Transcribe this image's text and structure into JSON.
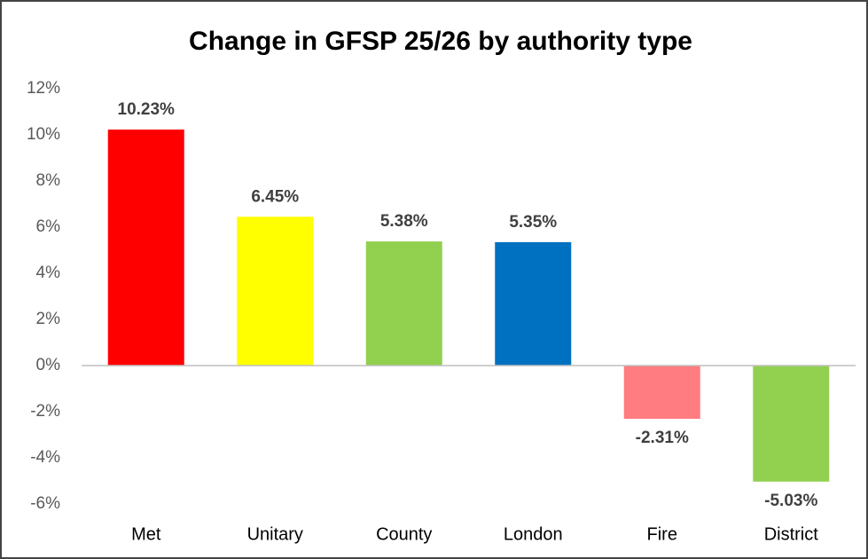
{
  "chart_data": {
    "type": "bar",
    "title": "Change in GFSP 25/26 by authority type",
    "categories": [
      "Met",
      "Unitary",
      "County",
      "London",
      "Fire",
      "District"
    ],
    "values": [
      10.23,
      6.45,
      5.38,
      5.35,
      -2.31,
      -5.03
    ],
    "value_labels": [
      "10.23%",
      "6.45%",
      "5.38%",
      "5.35%",
      "-2.31%",
      "-5.03%"
    ],
    "colors": [
      "#ff0000",
      "#ffff00",
      "#92d050",
      "#0070c0",
      "#ff7c80",
      "#92d050"
    ],
    "ylim": [
      -6,
      12
    ],
    "yticks": [
      {
        "value": -6,
        "label": "-6%"
      },
      {
        "value": -4,
        "label": "-4%"
      },
      {
        "value": -2,
        "label": "-2%"
      },
      {
        "value": 0,
        "label": "0%"
      },
      {
        "value": 2,
        "label": "2%"
      },
      {
        "value": 4,
        "label": "4%"
      },
      {
        "value": 6,
        "label": "6%"
      },
      {
        "value": 8,
        "label": "8%"
      },
      {
        "value": 10,
        "label": "10%"
      },
      {
        "value": 12,
        "label": "12%"
      }
    ],
    "grid": false
  }
}
